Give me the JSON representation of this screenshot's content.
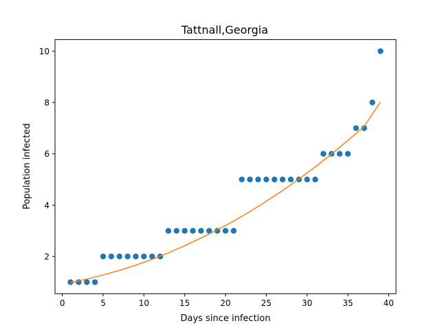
{
  "chart_data": {
    "type": "scatter",
    "title": "Tattnall,Georgia",
    "xlabel": "Days since infection",
    "ylabel": "Population infected",
    "xlim": [
      -0.9,
      40.9
    ],
    "ylim": [
      0.55,
      10.45
    ],
    "xticks": [
      0,
      5,
      10,
      15,
      20,
      25,
      30,
      35,
      40
    ],
    "yticks": [
      2,
      4,
      6,
      8,
      10
    ],
    "grid": false,
    "series": [
      {
        "kind": "scatter",
        "color": "#1f77b4",
        "x": [
          1,
          2,
          3,
          4,
          5,
          6,
          7,
          8,
          9,
          10,
          11,
          12,
          13,
          14,
          15,
          16,
          17,
          18,
          19,
          20,
          21,
          22,
          23,
          24,
          25,
          26,
          27,
          28,
          29,
          30,
          31,
          32,
          33,
          34,
          35,
          36,
          37,
          38,
          39
        ],
        "y": [
          1,
          1,
          1,
          1,
          2,
          2,
          2,
          2,
          2,
          2,
          2,
          2,
          3,
          3,
          3,
          3,
          3,
          3,
          3,
          3,
          3,
          5,
          5,
          5,
          5,
          5,
          5,
          5,
          5,
          5,
          5,
          6,
          6,
          6,
          6,
          7,
          7,
          8,
          10
        ]
      },
      {
        "kind": "line",
        "color": "#ff7f0e",
        "x": [
          1,
          3,
          5,
          7,
          9,
          11,
          13,
          15,
          17,
          19,
          21,
          23,
          25,
          27,
          29,
          31,
          33,
          35,
          37,
          39
        ],
        "y": [
          0.98,
          1.12,
          1.28,
          1.46,
          1.66,
          1.89,
          2.14,
          2.42,
          2.72,
          3.04,
          3.38,
          3.75,
          4.15,
          4.57,
          5.02,
          5.49,
          5.99,
          6.52,
          7.07,
          8.02
        ]
      }
    ]
  }
}
